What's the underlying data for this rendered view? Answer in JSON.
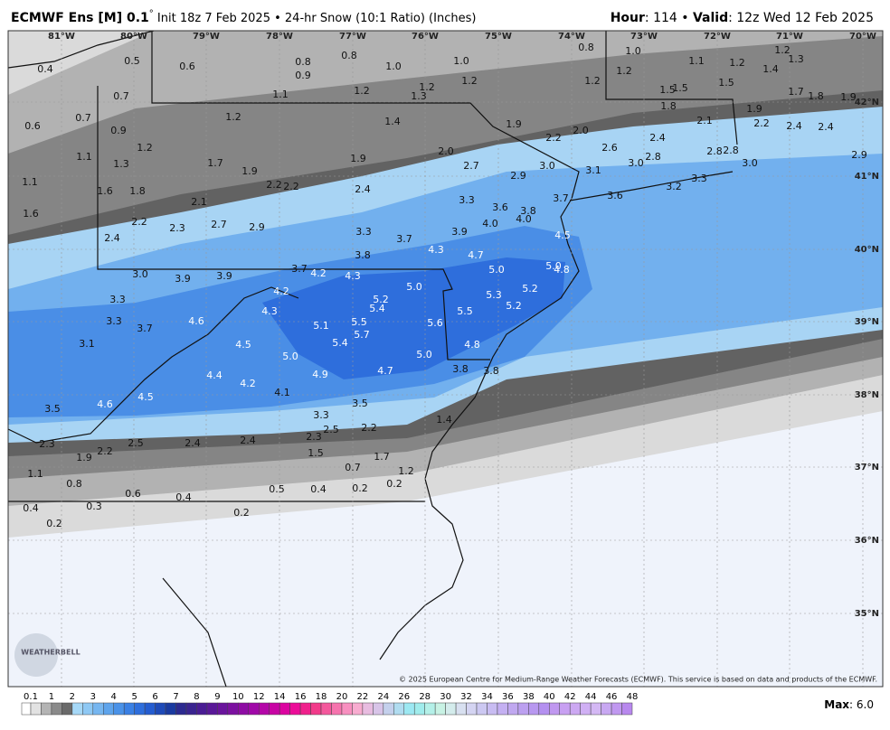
{
  "header": {
    "title": "ECMWF Ens [M] 0.1",
    "degree": "°",
    "subtitle": " Init 18z 7 Feb 2025 • 24-hr Snow (10:1 Ratio) (Inches)",
    "hour_key": "Hour",
    "hour_value": ": 114 • ",
    "valid_key": "Valid",
    "valid_value": ": 12z Wed 12 Feb 2025"
  },
  "longitudes": [
    "81°W",
    "80°W",
    "79°W",
    "78°W",
    "77°W",
    "76°W",
    "75°W",
    "74°W",
    "73°W",
    "72°W",
    "71°W",
    "70°W"
  ],
  "latitudes": [
    "42°N",
    "41°N",
    "40°N",
    "39°N",
    "38°N",
    "37°N",
    "36°N",
    "35°N"
  ],
  "map_labels": [
    "0.4",
    "0.5",
    "0.6",
    "0.8",
    "0.9",
    "0.8",
    "1.0",
    "1.0",
    "0.8",
    "1.0",
    "1.2",
    "1.1",
    "1.2",
    "1.4",
    "1.2",
    "1.3",
    "0.7",
    "1.1",
    "1.2",
    "1.2",
    "1.3",
    "1.2",
    "1.2",
    "1.5",
    "1.5",
    "1.5",
    "1.7",
    "1.8",
    "1.9",
    "0.7",
    "0.6",
    "0.9",
    "1.2",
    "1.4",
    "1.9",
    "1.8",
    "1.9",
    "2.1",
    "2.2",
    "2.2",
    "2.0",
    "2.6",
    "2.4",
    "2.4",
    "2.4",
    "1.2",
    "1.1",
    "1.3",
    "1.7",
    "1.9",
    "1.9",
    "2.0",
    "2.7",
    "3.0",
    "2.9",
    "3.1",
    "3.0",
    "2.8",
    "2.8",
    "2.8",
    "3.0",
    "2.9",
    "1.1",
    "1.6",
    "1.8",
    "2.2",
    "2.2",
    "2.4",
    "3.7",
    "3.6",
    "3.2",
    "3.3",
    "2.1",
    "3.3",
    "1.6",
    "2.2",
    "2.3",
    "2.7",
    "2.9",
    "3.6",
    "3.8",
    "4.0",
    "4.0",
    "2.4",
    "3.3",
    "3.7",
    "3.9",
    "4.5",
    "4.3",
    "3.8",
    "4.7",
    "3.0",
    "3.7",
    "4.2",
    "4.3",
    "3.9",
    "3.9",
    "5.0",
    "5.0",
    "4.8",
    "5.0",
    "5.2",
    "4.2",
    "5.3",
    "3.3",
    "5.2",
    "5.4",
    "5.2",
    "4.3",
    "5.5",
    "3.3",
    "4.6",
    "5.1",
    "5.5",
    "5.6",
    "3.7",
    "5.7",
    "5.4",
    "3.1",
    "4.5",
    "4.8",
    "5.0",
    "5.0",
    "3.8",
    "3.8",
    "4.4",
    "4.9",
    "4.7",
    "4.2",
    "4.1",
    "3.5",
    "4.5",
    "4.6",
    "3.5",
    "3.3",
    "1.4",
    "2.5",
    "2.2",
    "2.3",
    "2.5",
    "2.4",
    "2.4",
    "2.3",
    "2.2",
    "1.9",
    "1.5",
    "1.7",
    "0.7",
    "1.1",
    "1.2",
    "0.8",
    "0.2",
    "0.6",
    "0.4",
    "0.5",
    "0.4",
    "0.2",
    "0.3",
    "0.4",
    "0.2",
    "0.2"
  ],
  "legend": {
    "labels": [
      "0.1",
      "1",
      "2",
      "3",
      "4",
      "5",
      "6",
      "7",
      "8",
      "9",
      "10",
      "12",
      "14",
      "16",
      "18",
      "20",
      "22",
      "24",
      "26",
      "28",
      "30",
      "32",
      "34",
      "36",
      "38",
      "40",
      "42",
      "44",
      "46",
      "48"
    ],
    "colors": [
      "#ffffff",
      "#e2e2e2",
      "#b4b4b4",
      "#8a8a8a",
      "#6a6a6a",
      "#a6d8f7",
      "#8ec8f4",
      "#76b6f0",
      "#5ea4ec",
      "#4a92e8",
      "#3a80e4",
      "#2e6edc",
      "#245cd0",
      "#1e4ab8",
      "#1a3aa0",
      "#2c2a90",
      "#3a2490",
      "#4a1c94",
      "#5a1898",
      "#6a149c",
      "#7c10a0",
      "#8e0ca4",
      "#a008a8",
      "#b406a8",
      "#c804a4",
      "#dc04a0",
      "#ec0c98",
      "#f0208c",
      "#f23a8a",
      "#f4589c",
      "#f674ae",
      "#f890c0",
      "#f8acd0",
      "#e8bce0",
      "#d8c4e8",
      "#c4d0ec",
      "#b0dcf0",
      "#9ce8f2",
      "#a0ecec",
      "#b4f0e8",
      "#c8f2e4",
      "#d4ecec",
      "#d8e0f0",
      "#d4d4f2",
      "#ccc8f2",
      "#c8bcf2",
      "#c4b0f2",
      "#c0a8f0",
      "#bca0f0",
      "#b898f0",
      "#b490f0",
      "#c098f0",
      "#c8a0f2",
      "#cca8f2",
      "#d0b0f4",
      "#d4b8f4",
      "#c8a8f2",
      "#c098f0",
      "#b888ee"
    ]
  },
  "credit": "© 2025 European Centre for Medium-Range Weather Forecasts (ECMWF). This service is based on data and products of the ECMWF.",
  "logo": "WEATHERBELL",
  "max_key": "Max",
  "max_value": ": 6.0"
}
